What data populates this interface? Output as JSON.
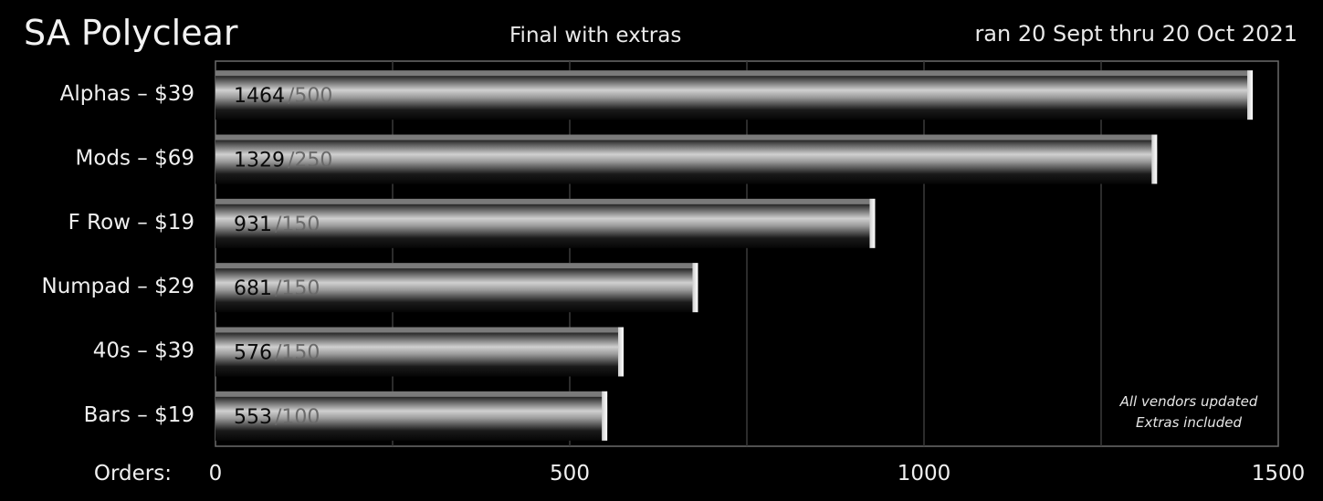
{
  "header": {
    "title": "SA Polyclear",
    "subtitle": "Final with extras",
    "date_range": "ran 20 Sept thru 20 Oct 2021"
  },
  "chart_data": {
    "type": "bar",
    "orientation": "horizontal",
    "categories": [
      "Alphas – $39",
      "Mods – $69",
      "F Row – $19",
      "Numpad – $29",
      "40s – $39",
      "Bars – $19"
    ],
    "values": [
      1464,
      1329,
      931,
      681,
      576,
      553
    ],
    "value_labels": [
      "1464",
      "1329",
      "931",
      "681",
      "576",
      "553"
    ],
    "goal_labels": [
      "/500",
      "/250",
      "/150",
      "/150",
      "/150",
      "/100"
    ],
    "xlabel": "Orders:",
    "xlim": [
      0,
      1500
    ],
    "xticks": [
      0,
      500,
      1000,
      1500
    ],
    "xtick_labels": [
      "0",
      "500",
      "1000",
      "1500"
    ],
    "grid": true,
    "annotation": [
      "All vendors updated",
      "Extras included"
    ],
    "colors": {
      "background": "#000000",
      "bar_light": "#d0d0d0",
      "bar_dark": "#0a0a0a",
      "grid": "#3a3a3a",
      "frame": "#6a6a6a"
    }
  }
}
